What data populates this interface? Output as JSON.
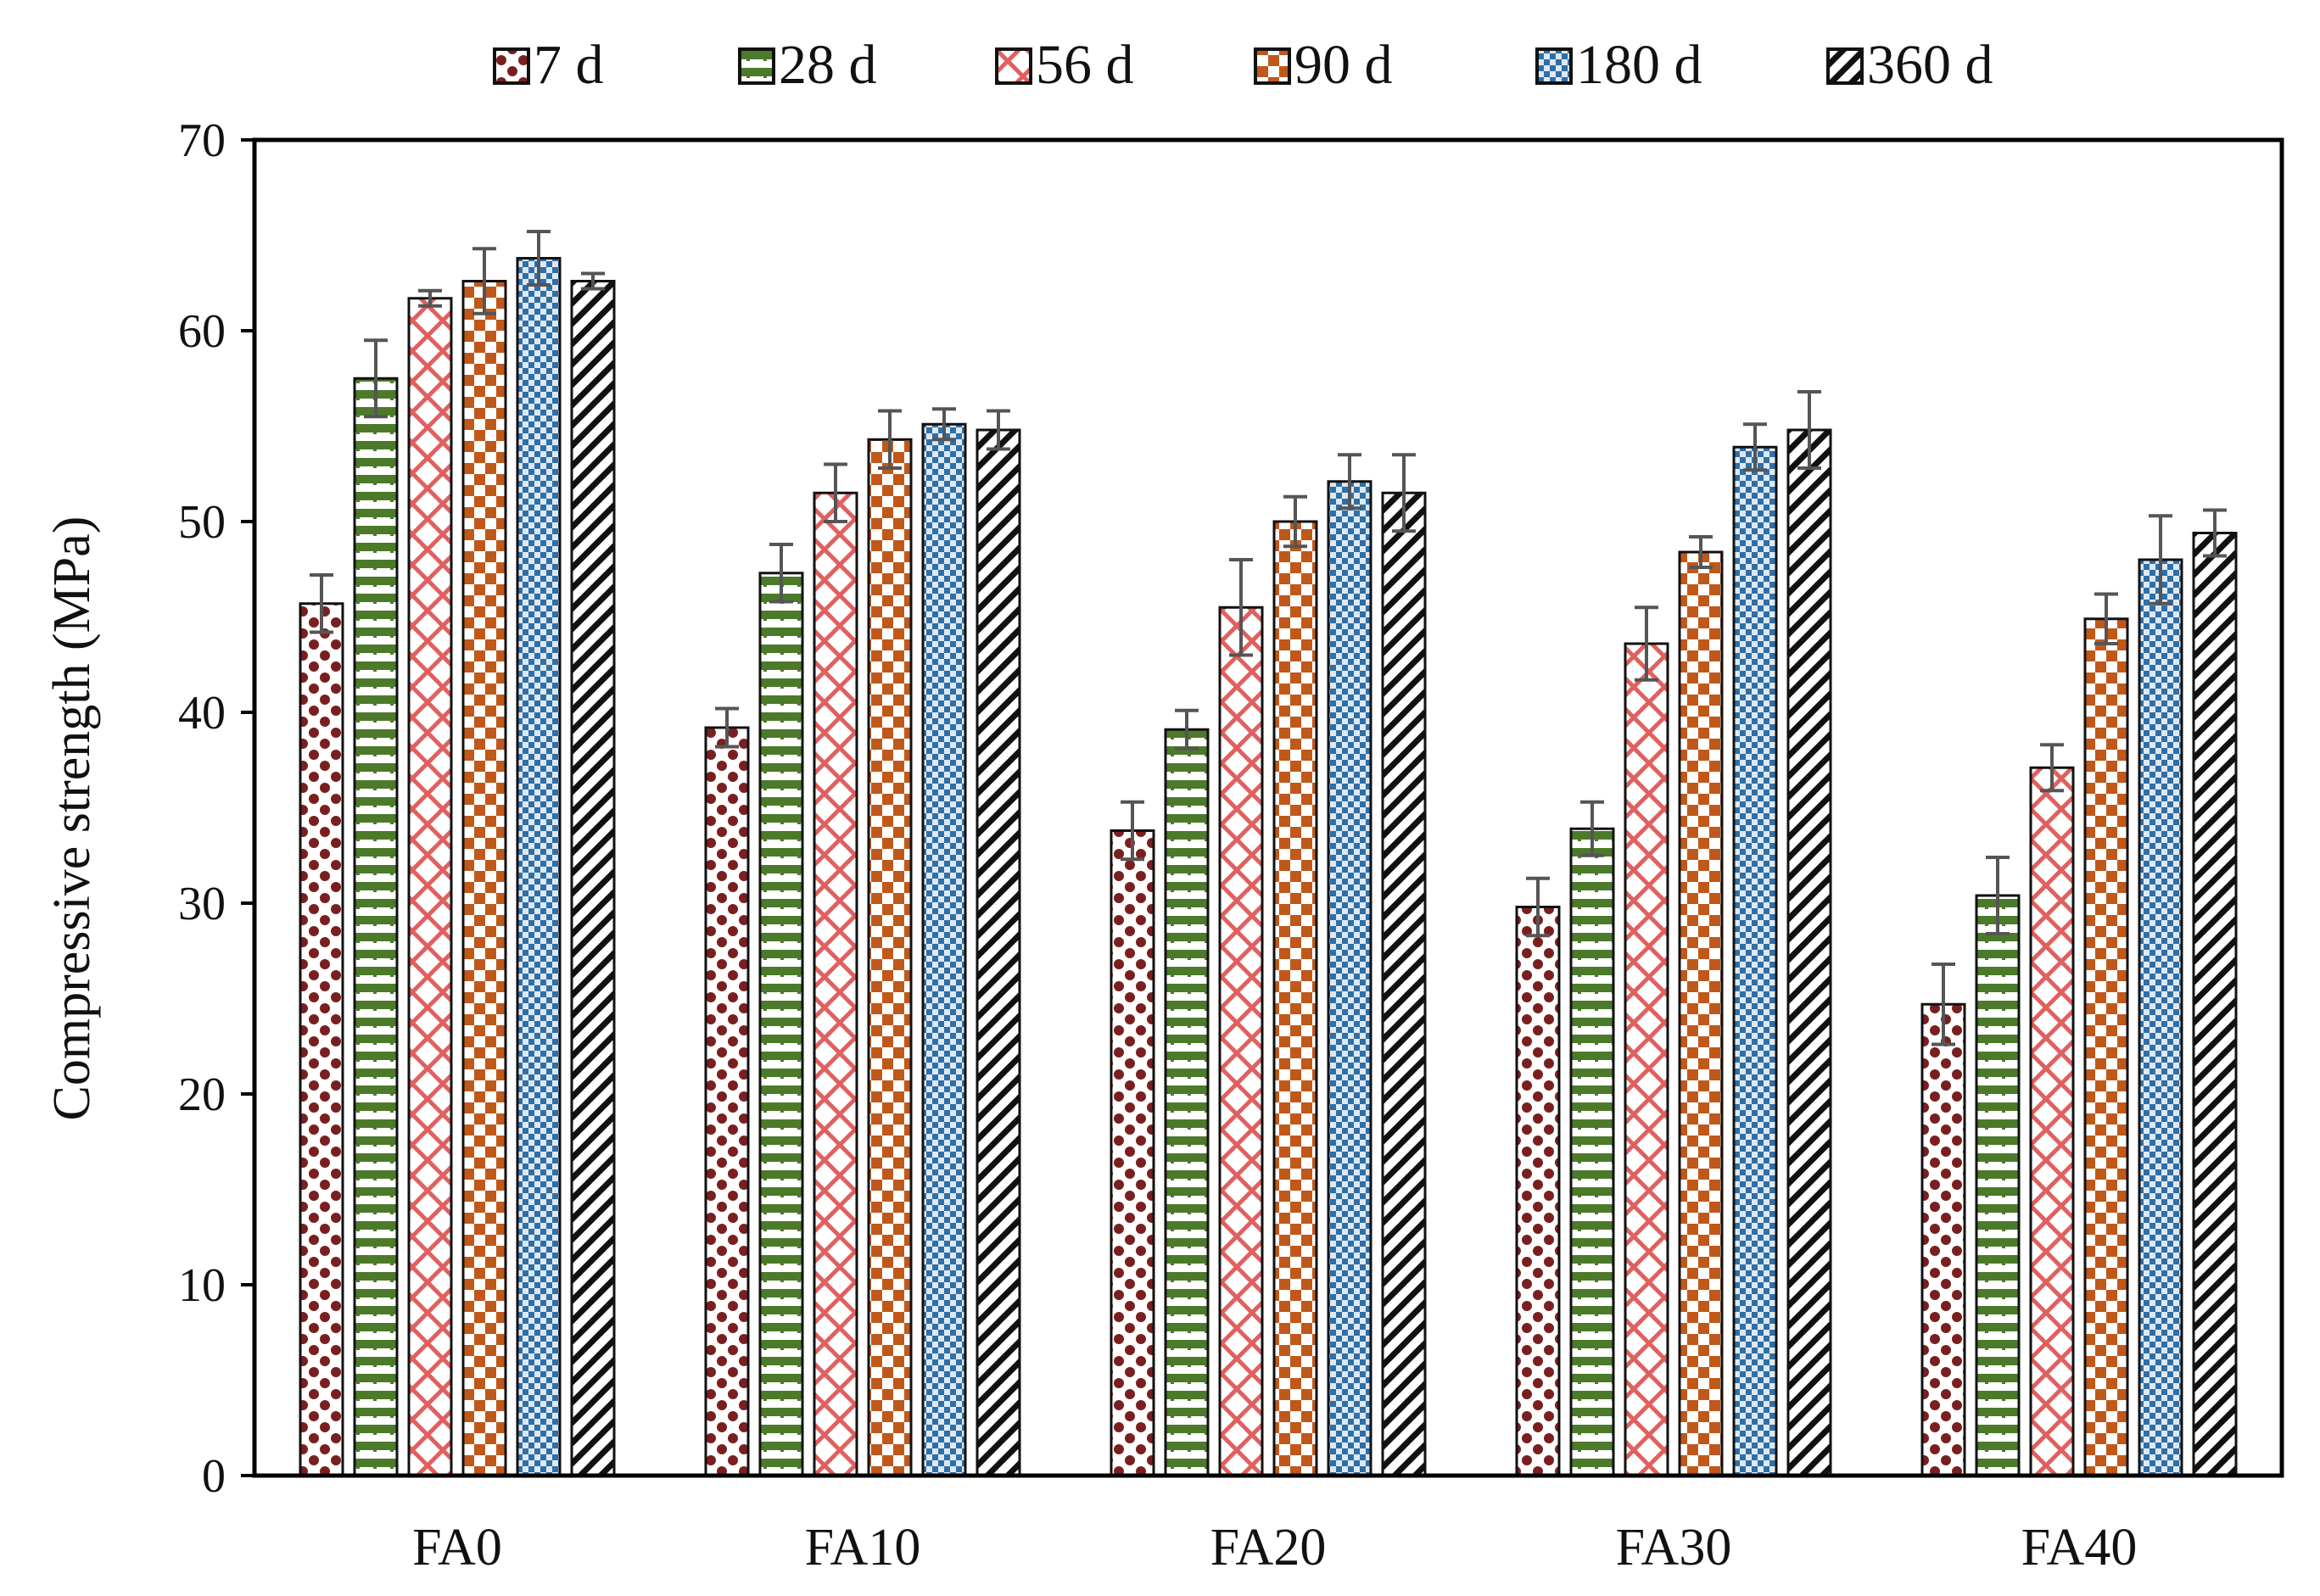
{
  "chart_data": {
    "type": "bar",
    "title": "",
    "xlabel": "",
    "ylabel": "Compressive strength (MPa)",
    "ylim": [
      0,
      70
    ],
    "yticks": [
      0,
      10,
      20,
      30,
      40,
      50,
      60,
      70
    ],
    "grid": false,
    "legend_position": "top",
    "categories": [
      "FA0",
      "FA10",
      "FA20",
      "FA30",
      "FA40"
    ],
    "series": [
      {
        "name": "7 d",
        "color": "#7a1f1f",
        "pattern": "dots",
        "values": [
          45.7,
          39.2,
          33.8,
          29.8,
          24.7
        ],
        "errors": [
          1.5,
          1.0,
          1.5,
          1.5,
          2.1
        ]
      },
      {
        "name": "28 d",
        "color": "#4c7a2a",
        "pattern": "hlines",
        "values": [
          57.5,
          47.3,
          39.1,
          33.9,
          30.4
        ],
        "errors": [
          2.0,
          1.5,
          1.0,
          1.4,
          2.0
        ]
      },
      {
        "name": "56 d",
        "color": "#e06060",
        "pattern": "lattice",
        "values": [
          61.7,
          51.5,
          45.5,
          43.6,
          37.1
        ],
        "errors": [
          0.4,
          1.5,
          2.5,
          1.9,
          1.2
        ]
      },
      {
        "name": "90 d",
        "color": "#c0581a",
        "pattern": "checker",
        "values": [
          62.6,
          54.3,
          50.0,
          48.4,
          44.9
        ],
        "errors": [
          1.7,
          1.5,
          1.3,
          0.8,
          1.3
        ]
      },
      {
        "name": "180 d",
        "color": "#2e6fa8",
        "pattern": "finecheck",
        "values": [
          63.8,
          55.1,
          52.1,
          53.9,
          48.0
        ],
        "errors": [
          1.4,
          0.8,
          1.4,
          1.2,
          2.3
        ]
      },
      {
        "name": "360 d",
        "color": "#111111",
        "pattern": "diagonal",
        "values": [
          62.6,
          54.8,
          51.5,
          54.8,
          49.4
        ],
        "errors": [
          0.4,
          1.0,
          2.0,
          2.0,
          1.2
        ]
      }
    ]
  }
}
